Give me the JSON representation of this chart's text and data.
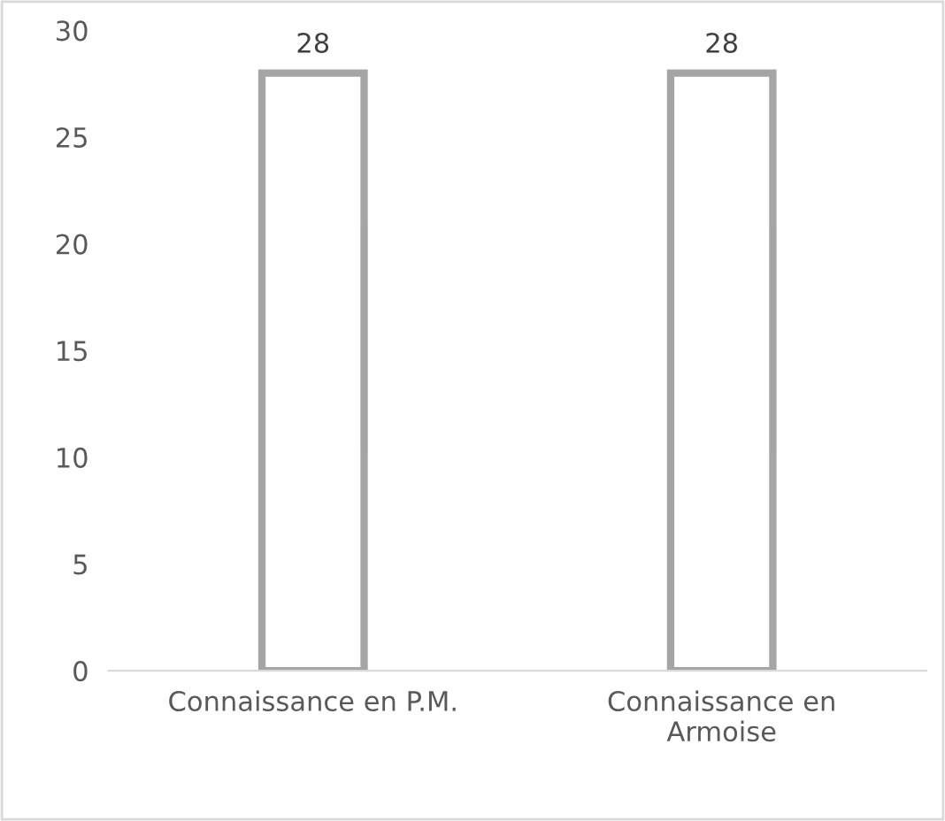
{
  "chart_data": {
    "type": "bar",
    "categories": [
      "Connaissance en P.M.",
      "Connaissance en\nArmoise"
    ],
    "values": [
      28,
      28
    ],
    "color": "#a5a5a5",
    "ylim": [
      0,
      30
    ],
    "yticks": [
      0,
      5,
      10,
      15,
      20,
      25,
      30
    ],
    "grid": false,
    "data_labels": true
  }
}
